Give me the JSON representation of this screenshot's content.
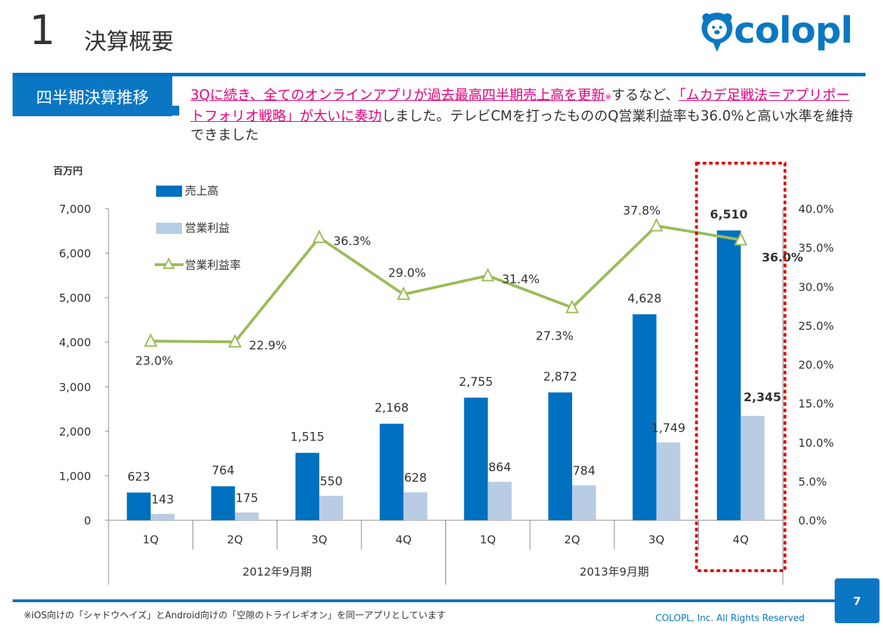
{
  "header": {
    "section_number": "1",
    "title": "決算概要",
    "logo_text": "colopl"
  },
  "tag": "四半期決算推移",
  "headline": {
    "part1": "3Qに続き、全てのオンラインアプリが過去最高四半期売上高を更新",
    "note_mark": "※",
    "part2": "するなど、",
    "part3": "「ムカデ足戦法＝アプリポートフォリオ戦略」が大いに奏功",
    "part4": "しました。テレビCMを打ったもののQ営業利益率も36.0%と高い水準を維持できました"
  },
  "footer": {
    "footnote": "※iOS向けの「シャドウヘイズ」とAndroid向けの「空隙のトライレギオン」を同一アプリとしています",
    "copyright": "COLOPL, Inc. All Rights Reserved",
    "page_number": "7"
  },
  "colors": {
    "accent": "#0070c0",
    "sales": "#0070c0",
    "op_income": "#b8cce4",
    "margin": "#9bbb59",
    "highlight": "#e6007e",
    "box": "#e00000"
  },
  "chart_data": {
    "type": "bar",
    "unit_label": "百万円",
    "categories": [
      "1Q",
      "2Q",
      "3Q",
      "4Q",
      "1Q",
      "2Q",
      "3Q",
      "4Q"
    ],
    "groups": [
      {
        "label": "2012年9月期",
        "span": 4
      },
      {
        "label": "2013年9月期",
        "span": 4
      }
    ],
    "series": [
      {
        "name": "売上高",
        "type": "bar",
        "values": [
          623,
          764,
          1515,
          2168,
          2755,
          2872,
          4628,
          6510
        ],
        "labels": [
          "623",
          "764",
          "1,515",
          "2,168",
          "2,755",
          "2,872",
          "4,628",
          "6,510"
        ]
      },
      {
        "name": "営業利益",
        "type": "bar",
        "values": [
          143,
          175,
          550,
          628,
          864,
          784,
          1749,
          2345
        ],
        "labels": [
          "143",
          "175",
          "550",
          "628",
          "864",
          "784",
          "1,749",
          "2,345"
        ]
      },
      {
        "name": "営業利益率",
        "type": "line",
        "axis": "right",
        "values": [
          23.0,
          22.9,
          36.3,
          29.0,
          31.4,
          27.3,
          37.8,
          36.0
        ],
        "labels": [
          "23.0%",
          "22.9%",
          "36.3%",
          "29.0%",
          "31.4%",
          "27.3%",
          "37.8%",
          "36.0%"
        ]
      }
    ],
    "y_left": {
      "min": 0,
      "max": 7000,
      "ticks": [
        "0",
        "1,000",
        "2,000",
        "3,000",
        "4,000",
        "5,000",
        "6,000",
        "7,000"
      ]
    },
    "y_right": {
      "min": 0,
      "max": 40,
      "ticks": [
        "0.0%",
        "5.0%",
        "10.0%",
        "15.0%",
        "20.0%",
        "25.0%",
        "30.0%",
        "35.0%",
        "40.0%"
      ]
    },
    "highlight_category_index": 7,
    "legend_position": "top-left"
  }
}
